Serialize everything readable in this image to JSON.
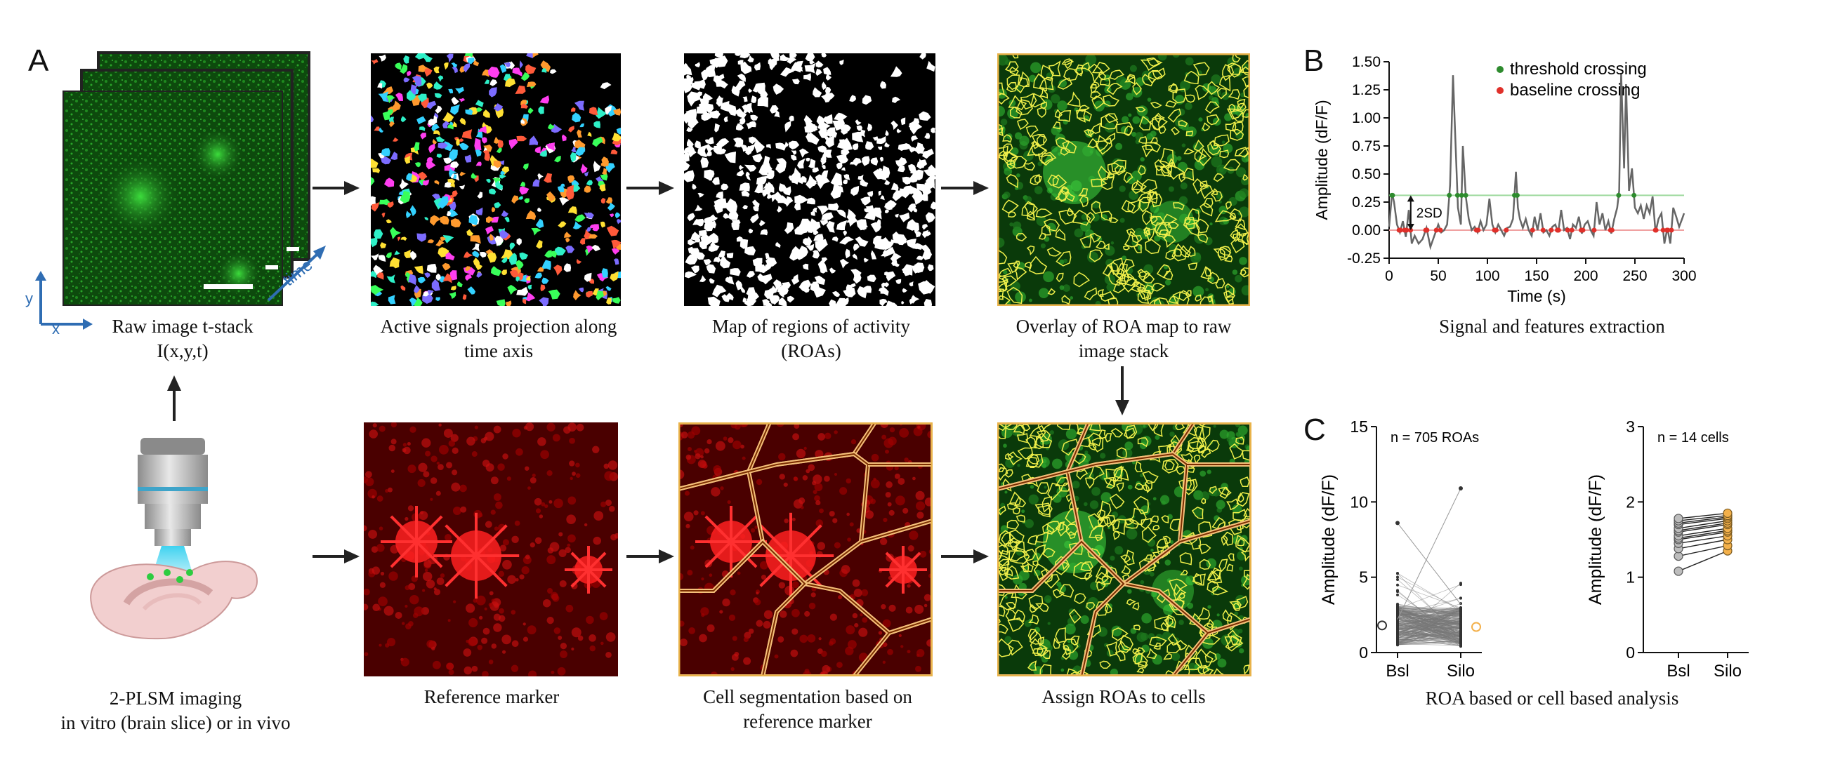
{
  "panels": {
    "a": "A",
    "b": "B",
    "c": "C"
  },
  "panel_a": {
    "raw_stack": {
      "caption": "Raw image t-stack\nI(x,y,t)",
      "axis_x": "x",
      "axis_y": "y",
      "axis_time": "time"
    },
    "active_signals": {
      "caption": "Active signals projection along\ntime axis"
    },
    "roa_map": {
      "caption": "Map of regions of activity\n(ROAs)"
    },
    "overlay": {
      "caption": "Overlay of ROA map to raw\nimage stack"
    },
    "imaging": {
      "caption": "2-PLSM imaging\nin vitro (brain slice) or in vivo"
    },
    "reference": {
      "caption": "Reference marker"
    },
    "segmentation": {
      "caption": "Cell segmentation based on\nreference marker"
    },
    "assign": {
      "caption": "Assign ROAs to cells"
    }
  },
  "panel_b": {
    "caption": "Signal and features extraction",
    "annotation_2sd": "2SD",
    "colors": {
      "threshold": "#2e8b2e",
      "baseline": "#e0302a",
      "trace": "#666666",
      "threshold_line": "#9ed99e",
      "baseline_line": "#f0a0a0"
    }
  },
  "panel_c": {
    "caption": "ROA based or cell based analysis",
    "colors": {
      "bsl": "#bdbdbd",
      "silo": "#f3b04a"
    }
  },
  "chart_data": [
    {
      "type": "line",
      "xlabel": "Time (s)",
      "ylabel": "Amplitude (dF/F)",
      "xlim": [
        0,
        300
      ],
      "ylim": [
        -0.25,
        1.5
      ],
      "xticks": [
        "0",
        "50",
        "100",
        "150",
        "200",
        "250",
        "300"
      ],
      "yticks": [
        "-0.25",
        "0.00",
        "0.25",
        "0.50",
        "0.75",
        "1.00",
        "1.25",
        "1.50"
      ],
      "legend": [
        {
          "label": "threshold crossing",
          "color": "#2e8b2e"
        },
        {
          "label": "baseline crossing",
          "color": "#e0302a"
        }
      ],
      "threshold": 0.31,
      "baseline": 0.0,
      "series": [
        {
          "x": [
            0,
            3,
            5,
            8,
            11,
            14,
            17,
            20,
            23,
            26,
            30,
            34,
            38,
            42,
            46,
            50,
            53,
            56,
            59,
            62,
            65,
            67,
            70,
            73,
            75,
            78,
            81,
            84,
            87,
            90,
            93,
            96,
            99,
            102,
            105,
            108,
            111,
            114,
            117,
            120,
            123,
            126,
            129,
            131,
            133,
            136,
            139,
            142,
            145,
            148,
            151,
            154,
            157,
            160,
            163,
            166,
            169,
            172,
            175,
            178,
            181,
            184,
            187,
            190,
            193,
            196,
            199,
            202,
            205,
            208,
            211,
            214,
            217,
            220,
            223,
            226,
            229,
            232,
            234,
            236,
            239,
            241,
            244,
            247,
            250,
            253,
            256,
            259,
            262,
            265,
            268,
            271,
            274,
            277,
            280,
            283,
            286,
            289,
            292,
            295,
            298,
            300
          ],
          "y": [
            0.03,
            0.33,
            0.25,
            0.05,
            -0.02,
            0.08,
            -0.06,
            0.18,
            -0.12,
            -0.05,
            -0.12,
            -0.08,
            0.02,
            -0.15,
            -0.05,
            0.05,
            -0.02,
            0.0,
            0.05,
            0.4,
            1.38,
            0.9,
            0.2,
            0.05,
            0.75,
            0.3,
            0.1,
            0.0,
            0.03,
            -0.02,
            0.08,
            0.0,
            0.05,
            0.28,
            0.05,
            -0.02,
            0.05,
            0.0,
            -0.05,
            0.02,
            0.03,
            0.1,
            0.52,
            0.2,
            0.1,
            0.02,
            0.1,
            0.0,
            -0.05,
            0.12,
            0.0,
            0.15,
            -0.02,
            0.0,
            -0.05,
            0.03,
            0.05,
            -0.02,
            0.18,
            0.0,
            0.02,
            -0.08,
            0.05,
            0.02,
            0.12,
            -0.03,
            0.05,
            0.08,
            0.0,
            -0.05,
            0.25,
            0.05,
            0.15,
            0.0,
            0.08,
            -0.03,
            0.1,
            0.2,
            0.35,
            1.4,
            0.55,
            1.3,
            0.35,
            0.55,
            0.2,
            0.15,
            0.22,
            0.1,
            0.22,
            0.15,
            0.3,
            -0.02,
            0.1,
            0.15,
            -0.12,
            0.02,
            -0.12,
            0.2,
            0.12,
            0.03,
            0.1,
            0.15
          ]
        }
      ]
    },
    {
      "type": "scatter",
      "title": "n = 705 ROAs",
      "ylabel": "Amplitude (dF/F)",
      "categories": [
        "Bsl",
        "Silo"
      ],
      "ylim": [
        0,
        15
      ],
      "yticks": [
        "0",
        "5",
        "10",
        "15"
      ],
      "mean": {
        "Bsl": 1.8,
        "Silo": 1.7
      },
      "max": {
        "Bsl": 8.6,
        "Silo": 10.9
      }
    },
    {
      "type": "scatter",
      "title": "n = 14 cells",
      "ylabel": "Amplitude (dF/F)",
      "categories": [
        "Bsl",
        "Silo"
      ],
      "ylim": [
        0,
        3
      ],
      "yticks": [
        "0",
        "1",
        "2",
        "3"
      ],
      "series": [
        {
          "name": "Bsl",
          "values": [
            1.08,
            1.28,
            1.38,
            1.45,
            1.5,
            1.52,
            1.55,
            1.6,
            1.62,
            1.65,
            1.7,
            1.72,
            1.75,
            1.78
          ]
        },
        {
          "name": "Silo",
          "values": [
            1.35,
            1.42,
            1.5,
            1.55,
            1.6,
            1.62,
            1.65,
            1.7,
            1.72,
            1.75,
            1.78,
            1.8,
            1.82,
            1.85
          ]
        }
      ]
    }
  ]
}
